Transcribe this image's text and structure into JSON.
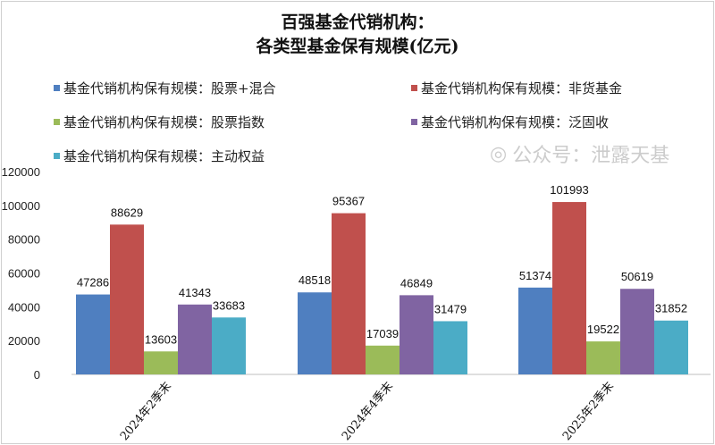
{
  "chart_data": {
    "type": "bar",
    "title": "百强基金代销机构：",
    "subtitle": "各类型基金保有规模(亿元)",
    "categories": [
      "2024年2季末",
      "2024年4季末",
      "2025年2季末"
    ],
    "series": [
      {
        "name": "基金代销机构保有规模：股票+混合",
        "color": "#4f7fc0",
        "values": [
          47286,
          48518,
          51374
        ]
      },
      {
        "name": "基金代销机构保有规模：非货基金",
        "color": "#c0504d",
        "values": [
          88629,
          95367,
          101993
        ]
      },
      {
        "name": "基金代销机构保有规模：股票指数",
        "color": "#9bbb59",
        "values": [
          13603,
          17039,
          19522
        ]
      },
      {
        "name": "基金代销机构保有规模：泛固收",
        "color": "#8064a2",
        "values": [
          41343,
          46849,
          50619
        ]
      },
      {
        "name": "基金代销机构保有规模：主动权益",
        "color": "#4bacc6",
        "values": [
          33683,
          31479,
          31852
        ]
      }
    ],
    "yticks": [
      "0",
      "20000",
      "40000",
      "60000",
      "80000",
      "100000",
      "120000"
    ],
    "ylim": [
      0,
      120000
    ],
    "grid": false,
    "legend_position": "top",
    "xlabel": "",
    "ylabel": ""
  },
  "watermark": "公众号：泄露天基"
}
